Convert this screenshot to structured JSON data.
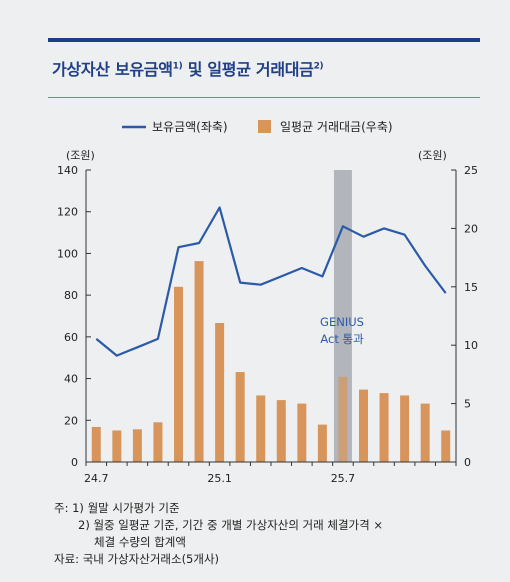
{
  "header": {
    "title": "가상자산 보유금액",
    "title_sup1": "1)",
    "title_mid": " 및 일평균 거래대금",
    "title_sup2": "2)"
  },
  "chart_data": {
    "type": "bar",
    "legend_position": "top-center",
    "series": [
      {
        "name": "보유금액(좌축)",
        "type": "line",
        "axis": "left",
        "color": "#2a5aa8",
        "values": [
          59,
          51,
          55,
          59,
          103,
          105,
          122,
          86,
          85,
          89,
          93,
          89,
          113,
          108,
          112,
          109,
          94,
          81
        ]
      },
      {
        "name": "일평균 거래대금(우축)",
        "type": "bar",
        "axis": "right",
        "color": "#d8955b",
        "values": [
          3.0,
          2.7,
          2.8,
          3.4,
          15.0,
          17.2,
          11.9,
          7.7,
          5.7,
          5.3,
          5.0,
          3.2,
          7.3,
          6.2,
          5.9,
          5.7,
          5.0,
          2.7
        ]
      }
    ],
    "x_tick_labels": [
      {
        "index": 0,
        "label": "24.7"
      },
      {
        "index": 6,
        "label": "25.1"
      },
      {
        "index": 12,
        "label": "25.7"
      }
    ],
    "left_axis": {
      "unit": "(조원)",
      "min": 0,
      "max": 140,
      "ticks": [
        0,
        20,
        40,
        60,
        80,
        100,
        120,
        140
      ]
    },
    "right_axis": {
      "unit": "(조원)",
      "min": 0,
      "max": 25,
      "ticks": [
        0,
        5,
        10,
        15,
        20,
        25
      ]
    },
    "highlight": {
      "index": 12,
      "label_line1": "GENIUS",
      "label_line2": "Act 통과",
      "color": "#9ea3ab"
    },
    "grid": false
  },
  "notes": {
    "note1": "주: 1) 월말 시가평가 기준",
    "note2a": "2) 월중 일평균 기준, 기간 중 개별 가상자산의 거래 체결가격 ×",
    "note2b": "체결 수량의 합계액",
    "source": "자료: 국내 가상자산거래소(5개사)"
  }
}
